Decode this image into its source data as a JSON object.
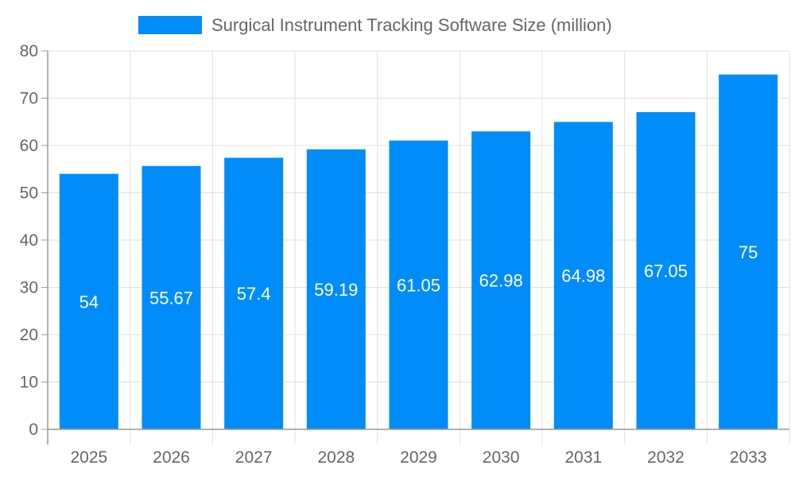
{
  "chart_data": {
    "type": "bar",
    "categories": [
      "2025",
      "2026",
      "2027",
      "2028",
      "2029",
      "2030",
      "2031",
      "2032",
      "2033"
    ],
    "series": [
      {
        "name": "Surgical Instrument Tracking Software Size (million)",
        "values": [
          54,
          55.67,
          57.4,
          59.19,
          61.05,
          62.98,
          64.98,
          67.05,
          75
        ],
        "labels": [
          "54",
          "55.67",
          "57.4",
          "59.19",
          "61.05",
          "62.98",
          "64.98",
          "67.05",
          "75"
        ]
      }
    ],
    "ylim": [
      0,
      80
    ],
    "yticks": [
      "0",
      "10",
      "20",
      "30",
      "40",
      "50",
      "60",
      "70",
      "80"
    ],
    "grid": true,
    "legend": "top-center",
    "colors": {
      "bar": "#008cf9",
      "grid": "#e0e0e0",
      "axis": "#999999",
      "text": "#666666",
      "data_label": "#ffffff"
    }
  }
}
